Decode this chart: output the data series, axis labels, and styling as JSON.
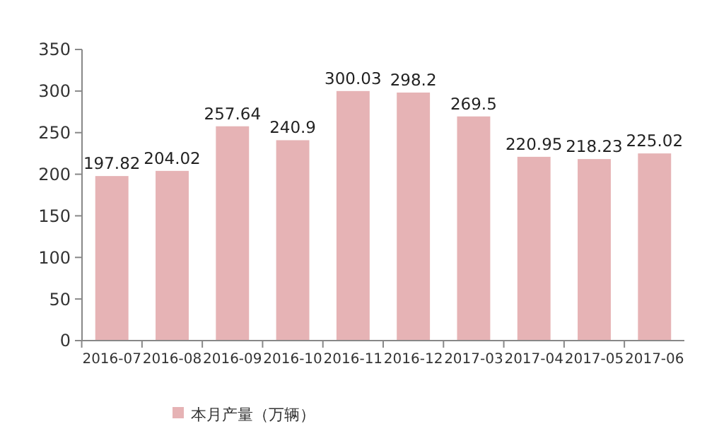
{
  "chart_data": {
    "type": "bar",
    "categories": [
      "2016-07",
      "2016-08",
      "2016-09",
      "2016-10",
      "2016-11",
      "2016-12",
      "2017-03",
      "2017-04",
      "2017-05",
      "2017-06"
    ],
    "series": [
      {
        "name": "本月产量（万辆）",
        "color": "#e6b3b5",
        "values": [
          197.82,
          204.02,
          257.64,
          240.9,
          300.03,
          298.2,
          269.5,
          220.95,
          218.23,
          225.02
        ]
      }
    ],
    "ylim": [
      0,
      350
    ],
    "yticks": [
      0,
      50,
      100,
      150,
      200,
      250,
      300,
      350
    ],
    "data_labels": true,
    "legend": "bottom"
  }
}
